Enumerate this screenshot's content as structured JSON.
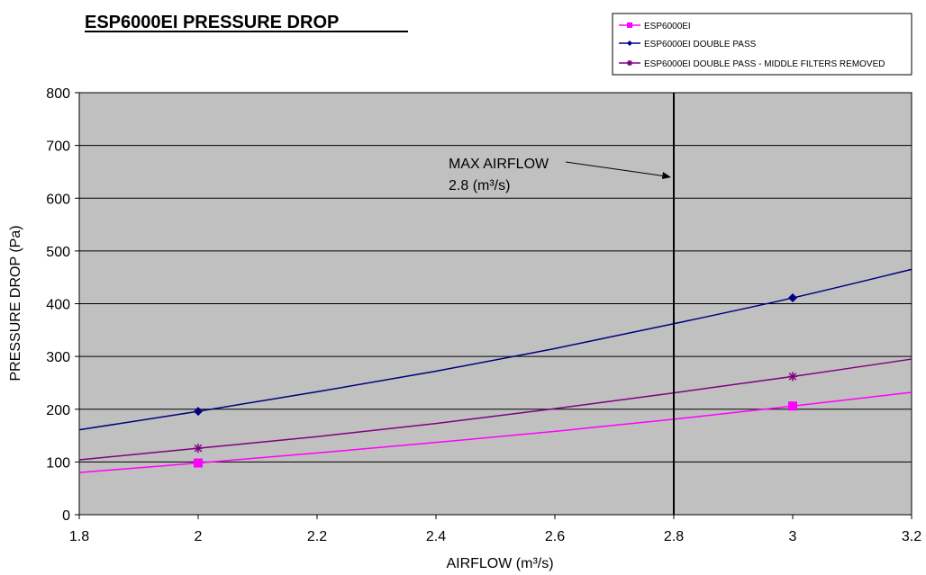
{
  "chart_data": {
    "type": "line",
    "title": "ESP6000EI PRESSURE DROP",
    "xlabel": "AIRFLOW (m³/s)",
    "ylabel": "PRESSURE DROP (Pa)",
    "xlim": [
      1.8,
      3.2
    ],
    "ylim": [
      0,
      800
    ],
    "x_ticks": [
      "1.8",
      "2",
      "2.2",
      "2.4",
      "2.6",
      "2.8",
      "3",
      "3.2"
    ],
    "y_ticks": [
      "0",
      "100",
      "200",
      "300",
      "400",
      "500",
      "600",
      "700",
      "800"
    ],
    "grid": "horizontal",
    "plot_background": "#c0c0c0",
    "legend_position": "top-right",
    "series": [
      {
        "name": "ESP6000EI",
        "color": "#ff00ff",
        "marker": "square",
        "points": [
          [
            2,
            98
          ],
          [
            3,
            206
          ]
        ],
        "curve": [
          [
            1.8,
            80
          ],
          [
            2,
            98
          ],
          [
            2.2,
            117
          ],
          [
            2.4,
            137
          ],
          [
            2.6,
            158
          ],
          [
            2.8,
            181
          ],
          [
            3,
            206
          ],
          [
            3.2,
            232
          ]
        ]
      },
      {
        "name": "ESP6000EI DOUBLE PASS",
        "color": "#000080",
        "marker": "diamond",
        "points": [
          [
            2,
            196
          ],
          [
            3,
            411
          ]
        ],
        "curve": [
          [
            1.8,
            161
          ],
          [
            2,
            196
          ],
          [
            2.2,
            233
          ],
          [
            2.4,
            272
          ],
          [
            2.6,
            315
          ],
          [
            2.8,
            362
          ],
          [
            3,
            411
          ],
          [
            3.2,
            465
          ]
        ]
      },
      {
        "name": "ESP6000EI DOUBLE PASS - MIDDLE FILTERS REMOVED",
        "color": "#800080",
        "marker": "star",
        "points": [
          [
            2,
            126
          ],
          [
            3,
            262
          ]
        ],
        "curve": [
          [
            1.8,
            104
          ],
          [
            2,
            126
          ],
          [
            2.2,
            148
          ],
          [
            2.4,
            173
          ],
          [
            2.6,
            201
          ],
          [
            2.8,
            231
          ],
          [
            3,
            262
          ],
          [
            3.2,
            295
          ]
        ]
      }
    ],
    "reference_line": {
      "x": 2.8,
      "color": "#000000",
      "label_line1": "MAX AIRFLOW",
      "label_line2": "2.8 (m³/s)"
    }
  }
}
